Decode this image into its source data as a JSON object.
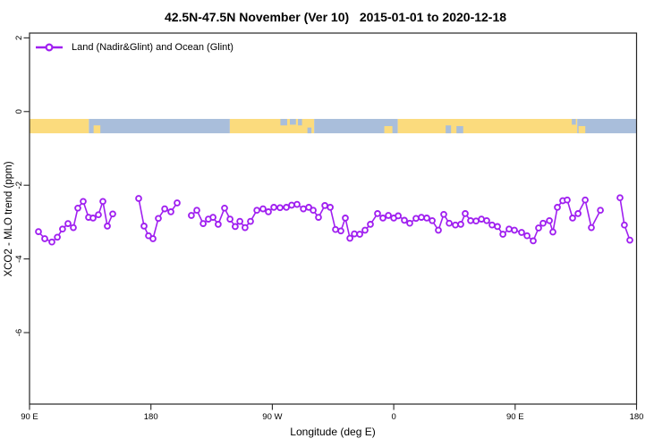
{
  "chart_data": {
    "type": "line",
    "title": "42.5N-47.5N November (Ver 10)   2015-01-01 to 2020-12-18",
    "xlabel": "Longitude (deg E)",
    "ylabel": "XCO2 - MLO trend (ppm)",
    "legend_label": "Land (Nadir&Glint) and Ocean (Glint)",
    "legend_position": "top-left",
    "grid": false,
    "series_color": "#A020F0",
    "axis_color": "#262626",
    "xlim": [
      90,
      540
    ],
    "ylim": [
      -7.94,
      2.13
    ],
    "x_ticks": [
      {
        "lon": 90,
        "label": "90 E"
      },
      {
        "lon": 180,
        "label": "180"
      },
      {
        "lon": 270,
        "label": "90 W"
      },
      {
        "lon": 360,
        "label": "0"
      },
      {
        "lon": 450,
        "label": "90 E"
      },
      {
        "lon": 540,
        "label": "180"
      }
    ],
    "y_ticks": [
      {
        "v": 2,
        "label": "2"
      },
      {
        "v": 0,
        "label": "0"
      },
      {
        "v": -2,
        "label": "-2"
      },
      {
        "v": -4,
        "label": "-4"
      },
      {
        "v": -6,
        "label": "-6"
      }
    ],
    "map_band": {
      "y_top": -0.2,
      "y_bottom": -0.59,
      "land_color": "#FBDB7D",
      "ocean_color": "#A9BEDB",
      "segments": [
        {
          "x0": 90,
          "x1": 134,
          "type": "land"
        },
        {
          "x0": 134,
          "x1": 238.5,
          "type": "ocean"
        },
        {
          "x0": 238.5,
          "x1": 301,
          "type": "land"
        },
        {
          "x0": 301,
          "x1": 363,
          "type": "ocean"
        },
        {
          "x0": 363,
          "x1": 496,
          "type": "land"
        },
        {
          "x0": 496,
          "x1": 540,
          "type": "ocean"
        }
      ],
      "details": [
        {
          "x0": 137.5,
          "x1": 142.5,
          "type": "land",
          "align": "bottom",
          "frac": 0.55
        },
        {
          "x0": 276,
          "x1": 281,
          "type": "ocean",
          "align": "top",
          "frac": 0.45
        },
        {
          "x0": 283,
          "x1": 287.5,
          "type": "ocean",
          "align": "top",
          "frac": 0.4
        },
        {
          "x0": 289,
          "x1": 292,
          "type": "ocean",
          "align": "top",
          "frac": 0.45
        },
        {
          "x0": 296,
          "x1": 299,
          "type": "ocean",
          "align": "bottom",
          "frac": 0.4
        },
        {
          "x0": 353,
          "x1": 359,
          "type": "land",
          "align": "bottom",
          "frac": 0.5
        },
        {
          "x0": 398.5,
          "x1": 402.5,
          "type": "ocean",
          "align": "bottom",
          "frac": 0.55
        },
        {
          "x0": 406.5,
          "x1": 411.5,
          "type": "ocean",
          "align": "bottom",
          "frac": 0.5
        },
        {
          "x0": 492,
          "x1": 495,
          "type": "ocean",
          "align": "top",
          "frac": 0.4
        },
        {
          "x0": 497,
          "x1": 502,
          "type": "land",
          "align": "bottom",
          "frac": 0.5
        }
      ]
    },
    "segments": [
      [
        [
          96.6,
          -3.26
        ],
        [
          101.3,
          -3.45
        ],
        [
          106.6,
          -3.54
        ],
        [
          110.6,
          -3.41
        ],
        [
          114.5,
          -3.19
        ],
        [
          118.5,
          -3.04
        ],
        [
          122.5,
          -3.15
        ],
        [
          125.8,
          -2.62
        ],
        [
          129.8,
          -2.44
        ],
        [
          133.8,
          -2.87
        ],
        [
          137.1,
          -2.89
        ],
        [
          141.1,
          -2.8
        ],
        [
          144.4,
          -2.44
        ],
        [
          147.7,
          -3.11
        ],
        [
          151.7,
          -2.78
        ]
      ],
      [
        [
          170.9,
          -2.36
        ],
        [
          174.9,
          -3.11
        ],
        [
          178.2,
          -3.37
        ],
        [
          181.5,
          -3.45
        ],
        [
          185.5,
          -2.9
        ],
        [
          190.2,
          -2.64
        ],
        [
          194.8,
          -2.72
        ],
        [
          199.4,
          -2.48
        ]
      ],
      [
        [
          210.0,
          -2.82
        ],
        [
          214.0,
          -2.68
        ],
        [
          218.7,
          -3.04
        ],
        [
          222.6,
          -2.92
        ],
        [
          226.0,
          -2.87
        ],
        [
          229.9,
          -3.06
        ],
        [
          234.6,
          -2.62
        ],
        [
          238.6,
          -2.92
        ],
        [
          242.5,
          -3.12
        ],
        [
          245.9,
          -2.98
        ],
        [
          249.8,
          -3.15
        ],
        [
          253.8,
          -2.98
        ],
        [
          258.5,
          -2.68
        ],
        [
          263.1,
          -2.64
        ],
        [
          267.1,
          -2.72
        ],
        [
          271.1,
          -2.6
        ],
        [
          275.7,
          -2.61
        ],
        [
          280.4,
          -2.6
        ],
        [
          284.3,
          -2.54
        ],
        [
          288.3,
          -2.52
        ],
        [
          293.0,
          -2.64
        ],
        [
          297.0,
          -2.6
        ],
        [
          300.3,
          -2.68
        ],
        [
          304.2,
          -2.87
        ],
        [
          308.9,
          -2.55
        ],
        [
          312.9,
          -2.6
        ],
        [
          316.8,
          -3.2
        ],
        [
          320.8,
          -3.24
        ],
        [
          324.1,
          -2.89
        ],
        [
          327.5,
          -3.44
        ],
        [
          330.8,
          -3.32
        ],
        [
          334.8,
          -3.33
        ],
        [
          338.7,
          -3.22
        ],
        [
          342.7,
          -3.06
        ],
        [
          348.0,
          -2.77
        ],
        [
          352.0,
          -2.89
        ],
        [
          356.0,
          -2.82
        ],
        [
          360.0,
          -2.89
        ],
        [
          363.3,
          -2.83
        ],
        [
          367.9,
          -2.95
        ],
        [
          371.9,
          -3.03
        ],
        [
          376.5,
          -2.9
        ],
        [
          380.5,
          -2.87
        ],
        [
          384.5,
          -2.89
        ],
        [
          388.5,
          -2.96
        ],
        [
          393.1,
          -3.22
        ],
        [
          397.1,
          -2.79
        ],
        [
          401.1,
          -3.03
        ],
        [
          405.7,
          -3.08
        ],
        [
          409.7,
          -3.06
        ],
        [
          413.0,
          -2.77
        ],
        [
          417.0,
          -2.96
        ],
        [
          421.0,
          -2.97
        ],
        [
          425.0,
          -2.92
        ],
        [
          428.9,
          -2.96
        ],
        [
          432.9,
          -3.08
        ],
        [
          436.9,
          -3.12
        ],
        [
          440.9,
          -3.33
        ],
        [
          445.5,
          -3.19
        ],
        [
          449.5,
          -3.22
        ],
        [
          454.8,
          -3.28
        ],
        [
          458.8,
          -3.37
        ],
        [
          463.4,
          -3.51
        ],
        [
          467.4,
          -3.16
        ],
        [
          470.7,
          -3.03
        ],
        [
          475.4,
          -2.96
        ],
        [
          478.0,
          -3.27
        ],
        [
          481.3,
          -2.6
        ],
        [
          485.3,
          -2.42
        ],
        [
          488.6,
          -2.4
        ],
        [
          492.6,
          -2.89
        ],
        [
          496.6,
          -2.77
        ],
        [
          501.9,
          -2.4
        ],
        [
          506.5,
          -3.15
        ],
        [
          513.2,
          -2.68
        ]
      ],
      [
        [
          527.7,
          -2.34
        ],
        [
          531.0,
          -3.08
        ],
        [
          535.0,
          -3.49
        ]
      ]
    ]
  }
}
